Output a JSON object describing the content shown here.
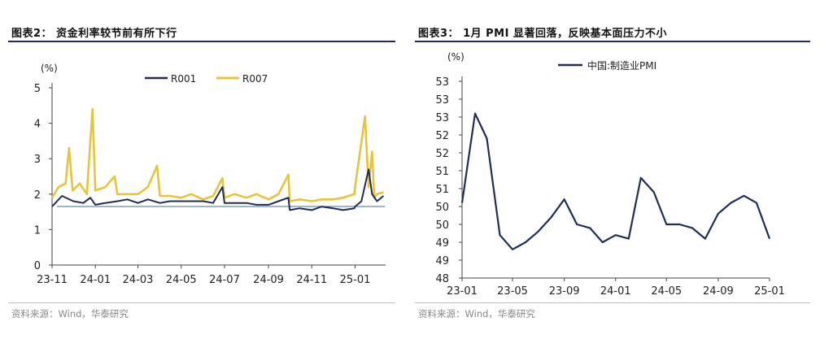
{
  "chart_data": [
    {
      "type": "line",
      "title": "图表2： 资金利率较节前有所下行",
      "ylabel": "(%)",
      "ylim": [
        0,
        5
      ],
      "yticks": [
        "0",
        "1",
        "2",
        "3",
        "4",
        "5"
      ],
      "x_tick_labels": [
        "23-11",
        "24-01",
        "24-03",
        "24-05",
        "24-07",
        "24-09",
        "24-11",
        "25-01"
      ],
      "x_range_months": [
        "2023-11",
        "2025-02"
      ],
      "legend": [
        "R001",
        "R007"
      ],
      "legend_position": "top",
      "reference_line": 1.65,
      "source": "资料来源：Wind，华泰研究",
      "series": [
        {
          "name": "R001",
          "color": "#1f2d57",
          "x": [
            "2023-11",
            "2023-11-15",
            "2023-12",
            "2023-12-15",
            "2023-12-25",
            "2024-01",
            "2024-01-15",
            "2024-02",
            "2024-02-15",
            "2024-03",
            "2024-03-15",
            "2024-04",
            "2024-04-15",
            "2024-05",
            "2024-05-15",
            "2024-06",
            "2024-06-15",
            "2024-06-28",
            "2024-07",
            "2024-07-15",
            "2024-08",
            "2024-08-15",
            "2024-09",
            "2024-09-15",
            "2024-09-29",
            "2024-10",
            "2024-10-15",
            "2024-11",
            "2024-11-15",
            "2024-12",
            "2024-12-15",
            "2024-12-31",
            "2025-01",
            "2025-01-10",
            "2025-01-20",
            "2025-01-25",
            "2025-02",
            "2025-02-10"
          ],
          "values": [
            1.65,
            1.95,
            1.8,
            1.75,
            1.9,
            1.7,
            1.75,
            1.8,
            1.85,
            1.75,
            1.85,
            1.75,
            1.8,
            1.8,
            1.8,
            1.8,
            1.75,
            2.2,
            1.75,
            1.75,
            1.75,
            1.7,
            1.7,
            1.8,
            1.9,
            1.55,
            1.6,
            1.55,
            1.65,
            1.6,
            1.55,
            1.6,
            1.65,
            1.8,
            2.7,
            2.0,
            1.8,
            1.95
          ]
        },
        {
          "name": "R007",
          "color": "#e8c43a",
          "x": [
            "2023-11",
            "2023-11-10",
            "2023-11-20",
            "2023-11-25",
            "2023-11-30",
            "2023-12-10",
            "2023-12-20",
            "2023-12-28",
            "2024-01",
            "2024-01-15",
            "2024-01-28",
            "2024-02",
            "2024-02-15",
            "2024-03",
            "2024-03-15",
            "2024-03-28",
            "2024-04",
            "2024-04-15",
            "2024-05",
            "2024-05-15",
            "2024-06",
            "2024-06-15",
            "2024-06-28",
            "2024-07",
            "2024-07-15",
            "2024-08",
            "2024-08-15",
            "2024-09",
            "2024-09-15",
            "2024-09-29",
            "2024-10",
            "2024-10-15",
            "2024-11",
            "2024-11-15",
            "2024-12",
            "2024-12-15",
            "2024-12-31",
            "2025-01",
            "2025-01-15",
            "2025-01-20",
            "2025-01-25",
            "2025-01-28",
            "2025-02",
            "2025-02-10"
          ],
          "values": [
            1.9,
            2.2,
            2.3,
            3.3,
            2.1,
            2.3,
            2.0,
            4.4,
            2.1,
            2.2,
            2.5,
            2.0,
            2.0,
            2.0,
            2.2,
            2.8,
            1.95,
            1.95,
            1.9,
            2.0,
            1.85,
            1.95,
            2.45,
            1.9,
            2.0,
            1.9,
            2.0,
            1.85,
            2.0,
            2.55,
            1.8,
            1.85,
            1.8,
            1.85,
            1.85,
            1.9,
            2.0,
            2.2,
            4.2,
            2.2,
            3.2,
            1.9,
            2.0,
            2.05
          ]
        }
      ]
    },
    {
      "type": "line",
      "title": "图表3： 1月 PMI 显著回落，反映基本面压力不小",
      "ylabel": "(%)",
      "ylim": [
        48,
        53.5
      ],
      "yticks": [
        "48",
        "49",
        "49",
        "50",
        "50",
        "51",
        "51",
        "52",
        "52",
        "53",
        "53",
        "53"
      ],
      "x_tick_labels": [
        "23-01",
        "23-05",
        "23-09",
        "24-01",
        "24-05",
        "24-09",
        "25-01"
      ],
      "legend": [
        "中国:制造业PMI"
      ],
      "legend_position": "top",
      "source": "资料来源：Wind，华泰研究",
      "series": [
        {
          "name": "中国:制造业PMI",
          "color": "#1f2d57",
          "x": [
            "2023-01",
            "2023-02",
            "2023-03",
            "2023-04",
            "2023-05",
            "2023-06",
            "2023-07",
            "2023-08",
            "2023-09",
            "2023-10",
            "2023-11",
            "2023-12",
            "2024-01",
            "2024-02",
            "2024-03",
            "2024-04",
            "2024-05",
            "2024-06",
            "2024-07",
            "2024-08",
            "2024-09",
            "2024-10",
            "2024-11",
            "2024-12",
            "2025-01"
          ],
          "values": [
            50.1,
            52.6,
            51.9,
            49.2,
            48.8,
            49.0,
            49.3,
            49.7,
            50.2,
            49.5,
            49.4,
            49.0,
            49.2,
            49.1,
            50.8,
            50.4,
            49.5,
            49.5,
            49.4,
            49.1,
            49.8,
            50.1,
            50.3,
            50.1,
            49.1
          ]
        }
      ]
    }
  ]
}
